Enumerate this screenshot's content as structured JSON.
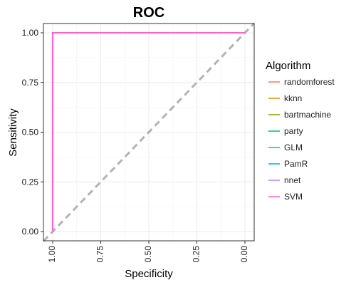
{
  "chart_data": {
    "type": "line",
    "title": "ROC",
    "xlabel": "Specificity",
    "ylabel": "Sensitivity",
    "x_reversed": true,
    "xlim": [
      1.0,
      0.0
    ],
    "ylim": [
      0.0,
      1.0
    ],
    "x_ticks": [
      "1.00",
      "0.75",
      "0.50",
      "0.25",
      "0.00"
    ],
    "y_ticks": [
      "0.00",
      "0.25",
      "0.50",
      "0.75",
      "1.00"
    ],
    "grid": true,
    "reference_line": {
      "x": [
        1.0,
        0.0
      ],
      "y": [
        0.0,
        1.0
      ],
      "style": "dashed",
      "color": "#b3b3b3"
    },
    "legend_title": "Algorithm",
    "legend_position": "right",
    "series": [
      {
        "name": "randomforest",
        "color": "#F8766D",
        "x": [
          1.0,
          1.0,
          0.0
        ],
        "y": [
          0.0,
          1.0,
          1.0
        ]
      },
      {
        "name": "kknn",
        "color": "#CD9600",
        "x": [
          1.0,
          1.0,
          0.0
        ],
        "y": [
          0.0,
          1.0,
          1.0
        ]
      },
      {
        "name": "bartmachine",
        "color": "#7CAE00",
        "x": [
          1.0,
          1.0,
          0.0
        ],
        "y": [
          0.0,
          1.0,
          1.0
        ]
      },
      {
        "name": "party",
        "color": "#00BE67",
        "x": [
          1.0,
          1.0,
          0.0
        ],
        "y": [
          0.0,
          1.0,
          1.0
        ]
      },
      {
        "name": "GLM",
        "color": "#00BFC4",
        "x": [
          1.0,
          1.0,
          0.0
        ],
        "y": [
          0.0,
          1.0,
          1.0
        ]
      },
      {
        "name": "PamR",
        "color": "#00A9FF",
        "x": [
          1.0,
          1.0,
          0.0
        ],
        "y": [
          0.0,
          1.0,
          1.0
        ]
      },
      {
        "name": "nnet",
        "color": "#C77CFF",
        "x": [
          1.0,
          1.0,
          0.0
        ],
        "y": [
          0.0,
          1.0,
          1.0
        ]
      },
      {
        "name": "SVM",
        "color": "#FF61CC",
        "x": [
          1.0,
          1.0,
          0.0
        ],
        "y": [
          0.0,
          1.0,
          1.0
        ]
      }
    ]
  }
}
